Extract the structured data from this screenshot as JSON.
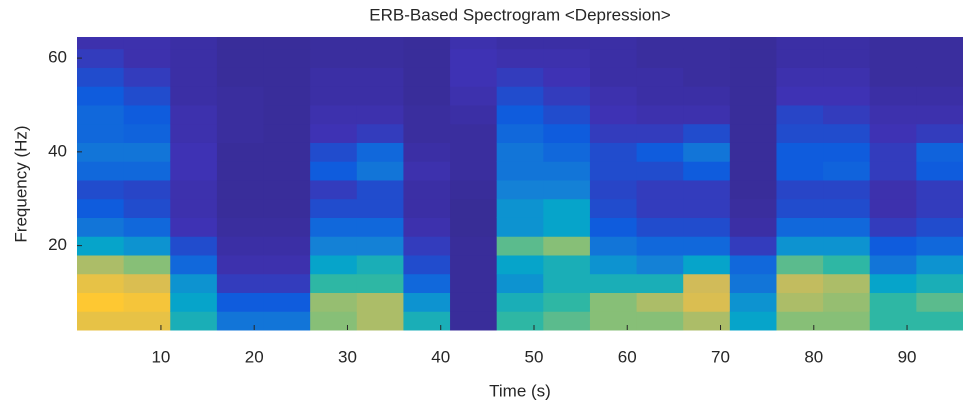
{
  "chart_data": {
    "type": "heatmap",
    "title": "ERB-Based Spectrogram <Depression>",
    "xlabel": "Time (s)",
    "ylabel": "Frequency (Hz)",
    "xlim": [
      1,
      96
    ],
    "ylim": [
      2,
      64.5
    ],
    "xticks": [
      10,
      20,
      30,
      40,
      50,
      60,
      70,
      80,
      90
    ],
    "yticks": [
      20,
      40,
      60
    ],
    "xbins": [
      1,
      6,
      11,
      16,
      21,
      26,
      31,
      36,
      41,
      46,
      51,
      56,
      61,
      66,
      71,
      76,
      81,
      86,
      91,
      96
    ],
    "ybins": [
      2,
      6,
      10,
      14,
      18,
      22,
      26,
      30,
      34,
      38,
      42,
      46,
      50,
      54,
      58,
      62,
      64.5
    ],
    "colormap": "parula",
    "clim": [
      0,
      1
    ],
    "z": [
      [
        0.85,
        0.9,
        0.85,
        0.75,
        0.5,
        0.35,
        0.25,
        0.2,
        0.3,
        0.35,
        0.3,
        0.3,
        0.25,
        0.2,
        0.15,
        0.1
      ],
      [
        0.85,
        0.88,
        0.82,
        0.7,
        0.45,
        0.3,
        0.2,
        0.18,
        0.3,
        0.35,
        0.28,
        0.25,
        0.2,
        0.15,
        0.1,
        0.1
      ],
      [
        0.55,
        0.5,
        0.45,
        0.3,
        0.2,
        0.12,
        0.1,
        0.1,
        0.12,
        0.12,
        0.1,
        0.1,
        0.08,
        0.08,
        0.08,
        0.08
      ],
      [
        0.35,
        0.25,
        0.15,
        0.1,
        0.08,
        0.06,
        0.05,
        0.05,
        0.05,
        0.05,
        0.06,
        0.06,
        0.06,
        0.05,
        0.05,
        0.05
      ],
      [
        0.35,
        0.25,
        0.15,
        0.1,
        0.08,
        0.06,
        0.05,
        0.05,
        0.05,
        0.05,
        0.05,
        0.05,
        0.05,
        0.05,
        0.05,
        0.05
      ],
      [
        0.7,
        0.72,
        0.6,
        0.5,
        0.4,
        0.3,
        0.2,
        0.15,
        0.25,
        0.2,
        0.12,
        0.1,
        0.08,
        0.08,
        0.06,
        0.06
      ],
      [
        0.75,
        0.75,
        0.6,
        0.55,
        0.4,
        0.3,
        0.2,
        0.2,
        0.35,
        0.3,
        0.15,
        0.1,
        0.08,
        0.08,
        0.06,
        0.06
      ],
      [
        0.55,
        0.45,
        0.3,
        0.2,
        0.15,
        0.1,
        0.08,
        0.08,
        0.1,
        0.08,
        0.06,
        0.06,
        0.05,
        0.05,
        0.05,
        0.05
      ],
      [
        0.05,
        0.05,
        0.05,
        0.05,
        0.05,
        0.04,
        0.04,
        0.05,
        0.06,
        0.06,
        0.06,
        0.08,
        0.1,
        0.12,
        0.12,
        0.1
      ],
      [
        0.6,
        0.55,
        0.45,
        0.5,
        0.65,
        0.45,
        0.45,
        0.4,
        0.35,
        0.35,
        0.3,
        0.25,
        0.2,
        0.15,
        0.1,
        0.08
      ],
      [
        0.65,
        0.6,
        0.55,
        0.55,
        0.7,
        0.5,
        0.5,
        0.4,
        0.35,
        0.3,
        0.25,
        0.2,
        0.15,
        0.12,
        0.1,
        0.08
      ],
      [
        0.7,
        0.7,
        0.55,
        0.45,
        0.35,
        0.25,
        0.2,
        0.18,
        0.2,
        0.2,
        0.15,
        0.12,
        0.1,
        0.08,
        0.08,
        0.08
      ],
      [
        0.7,
        0.75,
        0.55,
        0.4,
        0.3,
        0.2,
        0.15,
        0.15,
        0.2,
        0.25,
        0.15,
        0.1,
        0.08,
        0.08,
        0.06,
        0.06
      ],
      [
        0.75,
        0.82,
        0.8,
        0.5,
        0.3,
        0.2,
        0.15,
        0.15,
        0.25,
        0.35,
        0.2,
        0.1,
        0.08,
        0.06,
        0.06,
        0.06
      ],
      [
        0.5,
        0.45,
        0.35,
        0.3,
        0.15,
        0.08,
        0.06,
        0.05,
        0.05,
        0.05,
        0.05,
        0.05,
        0.05,
        0.05,
        0.05,
        0.05
      ],
      [
        0.7,
        0.75,
        0.78,
        0.65,
        0.45,
        0.3,
        0.2,
        0.18,
        0.25,
        0.25,
        0.2,
        0.18,
        0.12,
        0.1,
        0.08,
        0.08
      ],
      [
        0.7,
        0.72,
        0.75,
        0.6,
        0.45,
        0.3,
        0.2,
        0.18,
        0.28,
        0.25,
        0.2,
        0.15,
        0.12,
        0.1,
        0.08,
        0.08
      ],
      [
        0.6,
        0.6,
        0.5,
        0.35,
        0.25,
        0.15,
        0.1,
        0.1,
        0.15,
        0.15,
        0.12,
        0.1,
        0.08,
        0.06,
        0.06,
        0.06
      ],
      [
        0.6,
        0.65,
        0.55,
        0.45,
        0.3,
        0.2,
        0.15,
        0.15,
        0.25,
        0.28,
        0.15,
        0.1,
        0.08,
        0.06,
        0.06,
        0.06
      ]
    ]
  }
}
